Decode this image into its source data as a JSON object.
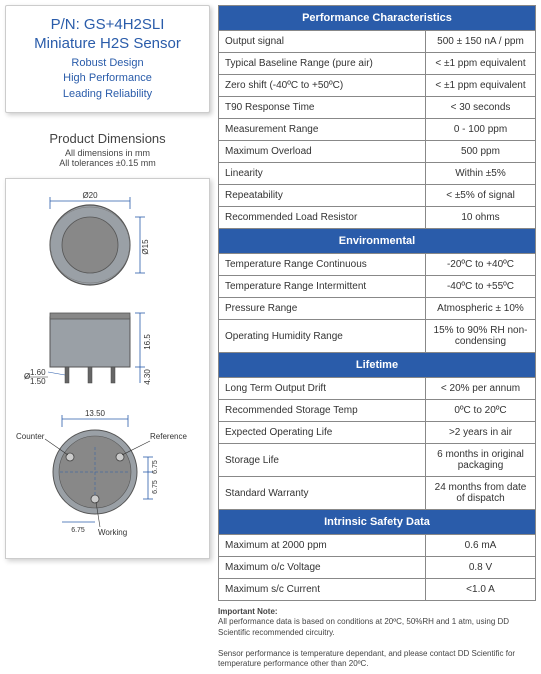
{
  "header": {
    "pn": "P/N: GS+4H2SLI",
    "subtitle": "Miniature H2S Sensor",
    "tag1": "Robust Design",
    "tag2": "High Performance",
    "tag3": "Leading Reliability"
  },
  "dimensions": {
    "heading": "Product Dimensions",
    "sub1": "All dimensions in mm",
    "sub2": "All tolerances ±0.15 mm"
  },
  "diagram": {
    "top_diameter": "Ø20",
    "top_inner": "Ø15",
    "side_height": "16.5",
    "pin_len": "4.30",
    "pin_dia_top": "1.60",
    "pin_dia_bot": "1.50",
    "bottom_width": "13.50",
    "bottom_h1": "6.75",
    "bottom_h2": "6.75",
    "lbl_counter": "Counter",
    "lbl_reference": "Reference",
    "lbl_working": "Working",
    "colors": {
      "body_fill": "#9aa0a6",
      "body_stroke": "#555",
      "dim_line": "#2a5caa",
      "text": "#333"
    }
  },
  "sections": {
    "perf": "Performance Characteristics",
    "env": "Environmental",
    "life": "Lifetime",
    "isd": "Intrinsic Safety Data"
  },
  "perf": [
    {
      "k": "Output signal",
      "v": "500 ± 150 nA / ppm"
    },
    {
      "k": "Typical Baseline Range (pure air)",
      "v": "< ±1 ppm equivalent"
    },
    {
      "k": "Zero shift (-40ºC to +50ºC)",
      "v": "< ±1 ppm equivalent"
    },
    {
      "k": "T90 Response Time",
      "v": "< 30 seconds"
    },
    {
      "k": "Measurement Range",
      "v": "0 - 100 ppm"
    },
    {
      "k": "Maximum Overload",
      "v": "500 ppm"
    },
    {
      "k": "Linearity",
      "v": "Within ±5%"
    },
    {
      "k": "Repeatability",
      "v": "< ±5% of signal"
    },
    {
      "k": "Recommended Load Resistor",
      "v": "10 ohms"
    }
  ],
  "env": [
    {
      "k": "Temperature Range Continuous",
      "v": "-20ºC to +40ºC"
    },
    {
      "k": "Temperature Range Intermittent",
      "v": "-40ºC to +55ºC"
    },
    {
      "k": "Pressure Range",
      "v": "Atmospheric ± 10%"
    },
    {
      "k": "Operating Humidity Range",
      "v": "15% to 90% RH non-condensing"
    }
  ],
  "life": [
    {
      "k": "Long Term Output Drift",
      "v": "< 20% per annum"
    },
    {
      "k": "Recommended Storage Temp",
      "v": "0ºC to 20ºC"
    },
    {
      "k": "Expected Operating Life",
      "v": ">2 years in air"
    },
    {
      "k": "Storage Life",
      "v": "6 months in original packaging"
    },
    {
      "k": "Standard Warranty",
      "v": "24 months from date of dispatch"
    }
  ],
  "isd": [
    {
      "k": "Maximum at 2000 ppm",
      "v": "0.6 mA"
    },
    {
      "k": "Maximum o/c Voltage",
      "v": "0.8 V"
    },
    {
      "k": "Maximum s/c Current",
      "v": "<1.0 A"
    }
  ],
  "footnote": {
    "title": "Important Note:",
    "l1": "All performance data is based on conditions at 20ºC, 50%RH and 1 atm, using DD Scientific recommended circuitry.",
    "l2": "Sensor performance is temperature dependant, and please contact DD Scientific for temperature performance other than 20ºC."
  }
}
